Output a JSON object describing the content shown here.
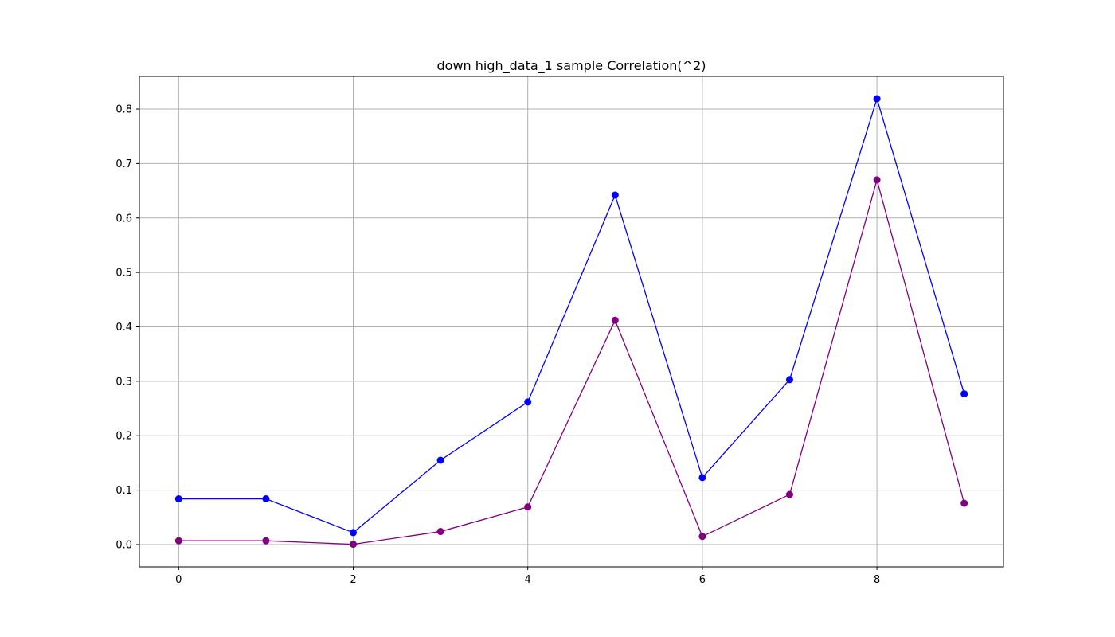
{
  "chart_data": {
    "type": "line",
    "title": "down high_data_1 sample Correlation(^2)",
    "xlabel": "",
    "ylabel": "",
    "x": [
      0,
      1,
      2,
      3,
      4,
      5,
      6,
      7,
      8,
      9
    ],
    "xlim": [
      -0.45,
      9.45
    ],
    "ylim": [
      -0.041,
      0.86
    ],
    "xticks": [
      0,
      2,
      4,
      6,
      8
    ],
    "yticks": [
      0.0,
      0.1,
      0.2,
      0.3,
      0.4,
      0.5,
      0.6,
      0.7,
      0.8
    ],
    "ytick_labels": [
      "0.0",
      "0.1",
      "0.2",
      "0.3",
      "0.4",
      "0.5",
      "0.6",
      "0.7",
      "0.8"
    ],
    "xtick_labels": [
      "0",
      "2",
      "4",
      "6",
      "8"
    ],
    "grid": true,
    "series": [
      {
        "color": "#0000ff",
        "marker": "circle",
        "values": [
          0.084,
          0.084,
          0.022,
          0.155,
          0.262,
          0.642,
          0.123,
          0.303,
          0.819,
          0.277
        ]
      },
      {
        "color": "#800080",
        "marker": "circle",
        "values": [
          0.007,
          0.007,
          0.0005,
          0.024,
          0.069,
          0.412,
          0.015,
          0.092,
          0.67,
          0.076
        ]
      }
    ]
  }
}
